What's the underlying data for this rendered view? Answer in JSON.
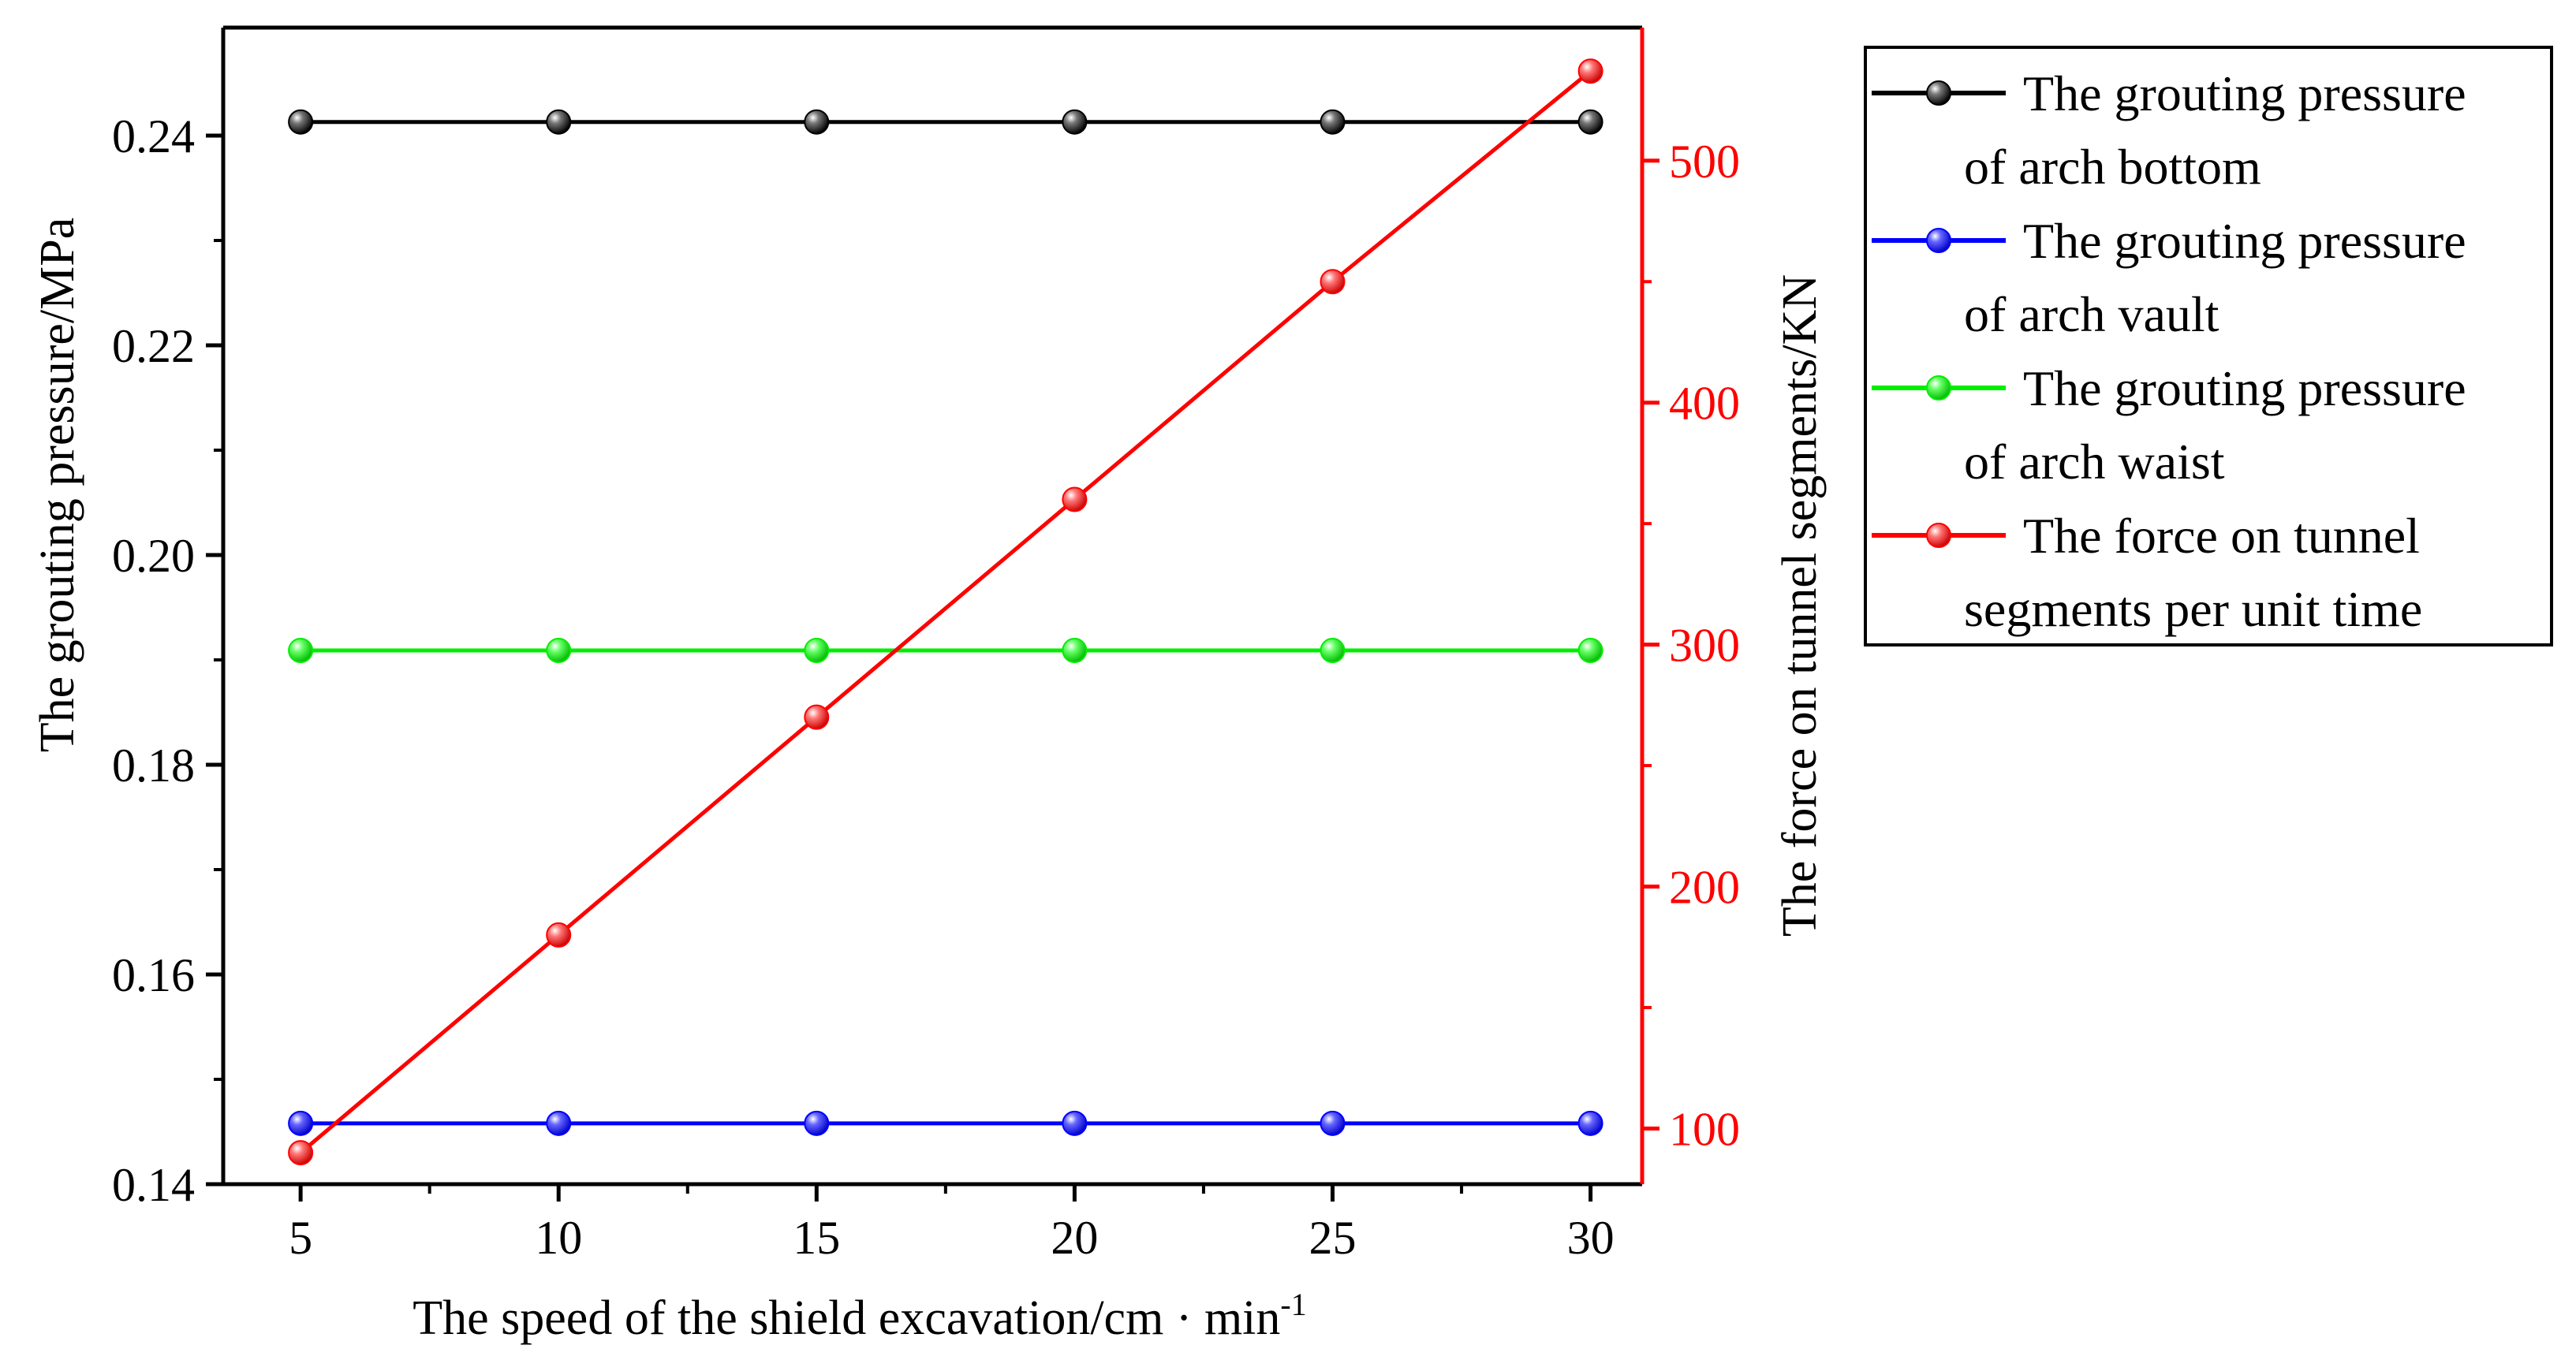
{
  "chart_data": {
    "type": "line",
    "dual_axis": true,
    "x": [
      5,
      10,
      15,
      20,
      25,
      30
    ],
    "xlabel": "The speed of the shield excavation/cm · min",
    "xlabel_superscript": "-1",
    "xlim": [
      3.5,
      31
    ],
    "xticks": [
      5,
      10,
      15,
      20,
      25,
      30
    ],
    "y_left": {
      "label": "The grouting pressure/MPa",
      "lim": [
        0.14,
        0.2503
      ],
      "ticks": [
        0.14,
        0.16,
        0.18,
        0.2,
        0.22,
        0.24
      ],
      "tick_labels": [
        "0.14",
        "0.16",
        "0.18",
        "0.20",
        "0.22",
        "0.24"
      ],
      "color": "#000000"
    },
    "y_right": {
      "label": "The force on tunnel segments/KN",
      "lim": [
        77,
        555
      ],
      "ticks": [
        100,
        200,
        300,
        400,
        500
      ],
      "tick_labels": [
        "100",
        "200",
        "300",
        "400",
        "500"
      ],
      "color": "#ff0000"
    },
    "series": [
      {
        "name": "The grouting pressure of arch bottom",
        "legend_lines": [
          "The grouting pressure",
          "of arch bottom"
        ],
        "axis": "left",
        "color": "#000000",
        "values": [
          0.2413,
          0.2413,
          0.2413,
          0.2413,
          0.2413,
          0.2413
        ]
      },
      {
        "name": "The grouting pressure of arch vault",
        "legend_lines": [
          "The grouting pressure",
          "of arch vault"
        ],
        "axis": "left",
        "color": "#0000ff",
        "values": [
          0.1458,
          0.1458,
          0.1458,
          0.1458,
          0.1458,
          0.1458
        ]
      },
      {
        "name": "The grouting pressure of arch waist",
        "legend_lines": [
          "The grouting pressure",
          "of arch waist"
        ],
        "axis": "left",
        "color": "#00ee00",
        "values": [
          0.1909,
          0.1909,
          0.1909,
          0.1909,
          0.1909,
          0.1909
        ]
      },
      {
        "name": "The force on tunnel segments per unit time",
        "legend_lines": [
          "The force on tunnel",
          "segments per unit time"
        ],
        "axis": "right",
        "color": "#ff0000",
        "values": [
          90,
          180,
          270,
          360,
          450,
          537
        ]
      }
    ],
    "legend_position": "top-right, outside plot"
  }
}
